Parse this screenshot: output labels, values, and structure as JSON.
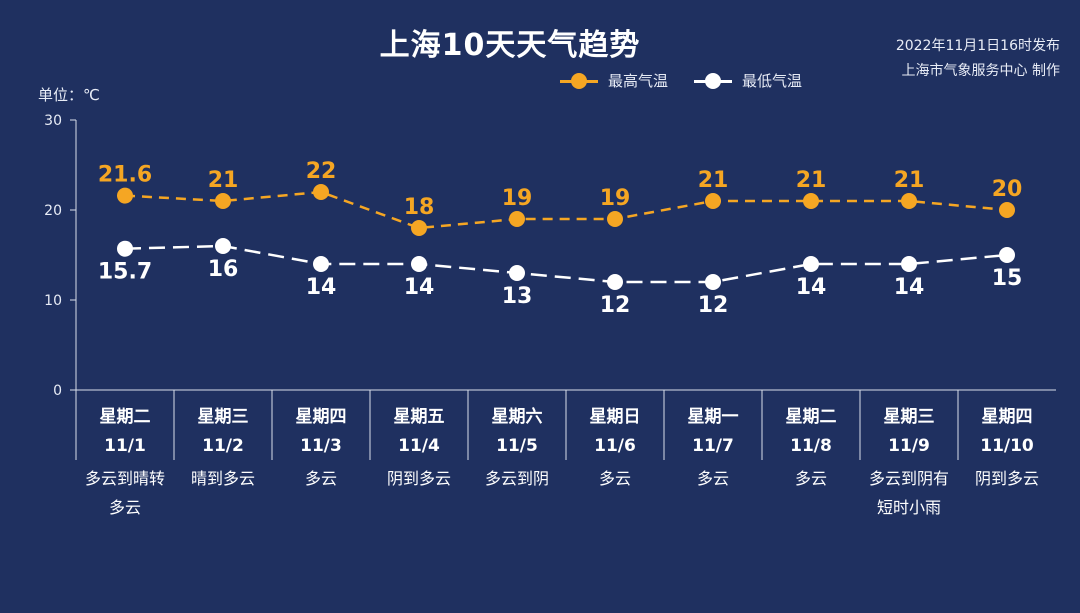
{
  "title": "上海10天天气趋势",
  "issue": {
    "line1": "2022年11月1日16时发布",
    "line2": "上海市气象服务中心 制作"
  },
  "unit_label": "单位：℃",
  "colors": {
    "background": "#1f3060",
    "high": "#f5a623",
    "low": "#ffffff"
  },
  "chart_data": {
    "type": "line",
    "categories": [
      "11/1",
      "11/2",
      "11/3",
      "11/4",
      "11/5",
      "11/6",
      "11/7",
      "11/8",
      "11/9",
      "11/10"
    ],
    "weekdays": [
      "星期二",
      "星期三",
      "星期四",
      "星期五",
      "星期六",
      "星期日",
      "星期一",
      "星期二",
      "星期三",
      "星期四"
    ],
    "weather": [
      [
        "多云到晴转",
        "多云"
      ],
      [
        "晴到多云"
      ],
      [
        "多云"
      ],
      [
        "阴到多云"
      ],
      [
        "多云到阴"
      ],
      [
        "多云"
      ],
      [
        "多云"
      ],
      [
        "多云"
      ],
      [
        "多云到阴有",
        "短时小雨"
      ],
      [
        "阴到多云"
      ]
    ],
    "series": [
      {
        "name": "最高气温",
        "values": [
          21.6,
          21,
          22,
          18,
          19,
          19,
          21,
          21,
          21,
          20
        ]
      },
      {
        "name": "最低气温",
        "values": [
          15.7,
          16,
          14,
          14,
          13,
          12,
          12,
          14,
          14,
          15
        ]
      }
    ],
    "ylim": [
      0,
      30
    ],
    "yticks": [
      0,
      10,
      20,
      30
    ],
    "grid": false,
    "legend": "top-center"
  }
}
